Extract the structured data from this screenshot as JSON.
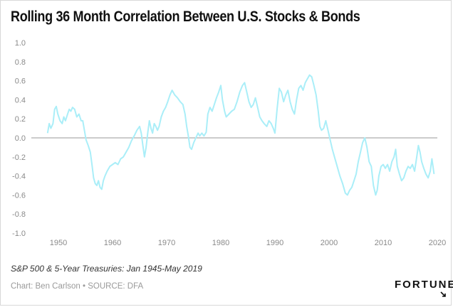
{
  "title": "Rolling 36 Month Correlation Between U.S. Stocks & Bonds",
  "subtitle": "S&P 500 & 5-Year Treasuries: Jan 1945-May 2019",
  "credit": "Chart: Ben Carlson • SOURCE: DFA",
  "logo": "FORTUNE",
  "colors": {
    "line": "#aaeef8",
    "zero_line": "#9a9a9a",
    "ticks": "#8a8a8a"
  },
  "chart_data": {
    "type": "line",
    "grid": false,
    "legend": "none",
    "xlim": [
      1945,
      2020
    ],
    "ylim": [
      -1.0,
      1.0
    ],
    "x_ticks": [
      "1950",
      "1960",
      "1970",
      "1980",
      "1990",
      "2000",
      "2010",
      "2020"
    ],
    "x_tick_values": [
      1950,
      1960,
      1970,
      1980,
      1990,
      2000,
      2010,
      2020
    ],
    "y_ticks": [
      "1.0",
      "0.8",
      "0.6",
      "0.4",
      "0.2",
      "0.0",
      "-0.2",
      "-0.4",
      "-0.6",
      "-0.8",
      "-1.0"
    ],
    "y_tick_values": [
      1.0,
      0.8,
      0.6,
      0.4,
      0.2,
      0.0,
      -0.2,
      -0.4,
      -0.6,
      -0.8,
      -1.0
    ],
    "series": [
      {
        "points": [
          [
            1948.0,
            0.05
          ],
          [
            1948.3,
            0.15
          ],
          [
            1948.6,
            0.1
          ],
          [
            1949.0,
            0.15
          ],
          [
            1949.3,
            0.3
          ],
          [
            1949.6,
            0.33
          ],
          [
            1949.9,
            0.25
          ],
          [
            1950.3,
            0.18
          ],
          [
            1950.7,
            0.15
          ],
          [
            1951.0,
            0.22
          ],
          [
            1951.3,
            0.18
          ],
          [
            1951.7,
            0.25
          ],
          [
            1952.0,
            0.3
          ],
          [
            1952.3,
            0.28
          ],
          [
            1952.6,
            0.32
          ],
          [
            1953.0,
            0.3
          ],
          [
            1953.4,
            0.22
          ],
          [
            1953.8,
            0.25
          ],
          [
            1954.2,
            0.18
          ],
          [
            1954.5,
            0.18
          ],
          [
            1954.8,
            0.08
          ],
          [
            1955.1,
            -0.02
          ],
          [
            1955.5,
            -0.08
          ],
          [
            1955.9,
            -0.15
          ],
          [
            1956.2,
            -0.28
          ],
          [
            1956.5,
            -0.42
          ],
          [
            1956.8,
            -0.48
          ],
          [
            1957.1,
            -0.5
          ],
          [
            1957.4,
            -0.45
          ],
          [
            1957.7,
            -0.52
          ],
          [
            1958.0,
            -0.54
          ],
          [
            1958.3,
            -0.45
          ],
          [
            1958.6,
            -0.4
          ],
          [
            1959.0,
            -0.35
          ],
          [
            1959.5,
            -0.3
          ],
          [
            1960.0,
            -0.28
          ],
          [
            1960.5,
            -0.26
          ],
          [
            1961.0,
            -0.28
          ],
          [
            1961.5,
            -0.22
          ],
          [
            1962.0,
            -0.2
          ],
          [
            1962.5,
            -0.15
          ],
          [
            1963.0,
            -0.1
          ],
          [
            1963.5,
            -0.03
          ],
          [
            1964.0,
            0.02
          ],
          [
            1964.5,
            0.08
          ],
          [
            1965.0,
            0.12
          ],
          [
            1965.3,
            0.05
          ],
          [
            1965.6,
            -0.08
          ],
          [
            1965.9,
            -0.2
          ],
          [
            1966.2,
            -0.1
          ],
          [
            1966.5,
            0.05
          ],
          [
            1966.8,
            0.18
          ],
          [
            1967.1,
            0.1
          ],
          [
            1967.4,
            0.05
          ],
          [
            1967.7,
            0.15
          ],
          [
            1968.0,
            0.12
          ],
          [
            1968.3,
            0.08
          ],
          [
            1968.6,
            0.12
          ],
          [
            1969.0,
            0.22
          ],
          [
            1969.4,
            0.28
          ],
          [
            1969.8,
            0.32
          ],
          [
            1970.2,
            0.38
          ],
          [
            1970.6,
            0.45
          ],
          [
            1971.0,
            0.5
          ],
          [
            1971.5,
            0.45
          ],
          [
            1972.0,
            0.42
          ],
          [
            1972.5,
            0.38
          ],
          [
            1973.0,
            0.35
          ],
          [
            1973.4,
            0.25
          ],
          [
            1973.7,
            0.12
          ],
          [
            1974.0,
            0.02
          ],
          [
            1974.3,
            -0.1
          ],
          [
            1974.6,
            -0.12
          ],
          [
            1975.0,
            -0.05
          ],
          [
            1975.4,
            0.0
          ],
          [
            1975.8,
            0.05
          ],
          [
            1976.1,
            0.02
          ],
          [
            1976.5,
            0.05
          ],
          [
            1976.9,
            0.02
          ],
          [
            1977.3,
            0.06
          ],
          [
            1977.6,
            0.25
          ],
          [
            1978.0,
            0.32
          ],
          [
            1978.4,
            0.28
          ],
          [
            1978.8,
            0.35
          ],
          [
            1979.2,
            0.42
          ],
          [
            1979.6,
            0.48
          ],
          [
            1980.0,
            0.55
          ],
          [
            1980.3,
            0.4
          ],
          [
            1980.7,
            0.28
          ],
          [
            1981.0,
            0.22
          ],
          [
            1981.5,
            0.25
          ],
          [
            1982.0,
            0.28
          ],
          [
            1982.5,
            0.3
          ],
          [
            1983.0,
            0.38
          ],
          [
            1983.5,
            0.48
          ],
          [
            1984.0,
            0.55
          ],
          [
            1984.4,
            0.58
          ],
          [
            1984.8,
            0.48
          ],
          [
            1985.2,
            0.38
          ],
          [
            1985.6,
            0.32
          ],
          [
            1986.0,
            0.35
          ],
          [
            1986.4,
            0.42
          ],
          [
            1986.8,
            0.32
          ],
          [
            1987.2,
            0.22
          ],
          [
            1987.6,
            0.18
          ],
          [
            1988.0,
            0.15
          ],
          [
            1988.5,
            0.12
          ],
          [
            1988.9,
            0.18
          ],
          [
            1989.3,
            0.15
          ],
          [
            1989.7,
            0.1
          ],
          [
            1990.0,
            0.05
          ],
          [
            1990.4,
            0.3
          ],
          [
            1990.8,
            0.52
          ],
          [
            1991.2,
            0.48
          ],
          [
            1991.6,
            0.38
          ],
          [
            1992.0,
            0.45
          ],
          [
            1992.4,
            0.5
          ],
          [
            1992.8,
            0.38
          ],
          [
            1993.2,
            0.3
          ],
          [
            1993.6,
            0.25
          ],
          [
            1994.0,
            0.4
          ],
          [
            1994.4,
            0.52
          ],
          [
            1994.8,
            0.55
          ],
          [
            1995.2,
            0.5
          ],
          [
            1995.6,
            0.58
          ],
          [
            1996.0,
            0.62
          ],
          [
            1996.4,
            0.66
          ],
          [
            1996.8,
            0.64
          ],
          [
            1997.2,
            0.55
          ],
          [
            1997.6,
            0.45
          ],
          [
            1998.0,
            0.28
          ],
          [
            1998.3,
            0.12
          ],
          [
            1998.6,
            0.08
          ],
          [
            1999.0,
            0.1
          ],
          [
            1999.4,
            0.18
          ],
          [
            1999.8,
            0.08
          ],
          [
            2000.2,
            -0.02
          ],
          [
            2000.6,
            -0.12
          ],
          [
            2001.0,
            -0.2
          ],
          [
            2001.5,
            -0.3
          ],
          [
            2002.0,
            -0.4
          ],
          [
            2002.5,
            -0.48
          ],
          [
            2003.0,
            -0.58
          ],
          [
            2003.4,
            -0.6
          ],
          [
            2003.8,
            -0.55
          ],
          [
            2004.2,
            -0.52
          ],
          [
            2004.6,
            -0.45
          ],
          [
            2005.0,
            -0.38
          ],
          [
            2005.4,
            -0.25
          ],
          [
            2005.8,
            -0.15
          ],
          [
            2006.2,
            -0.05
          ],
          [
            2006.6,
            0.0
          ],
          [
            2007.0,
            -0.1
          ],
          [
            2007.4,
            -0.25
          ],
          [
            2007.8,
            -0.3
          ],
          [
            2008.2,
            -0.5
          ],
          [
            2008.6,
            -0.6
          ],
          [
            2008.9,
            -0.55
          ],
          [
            2009.2,
            -0.4
          ],
          [
            2009.6,
            -0.3
          ],
          [
            2010.0,
            -0.28
          ],
          [
            2010.4,
            -0.32
          ],
          [
            2010.8,
            -0.28
          ],
          [
            2011.2,
            -0.35
          ],
          [
            2011.6,
            -0.25
          ],
          [
            2012.0,
            -0.2
          ],
          [
            2012.3,
            -0.12
          ],
          [
            2012.6,
            -0.3
          ],
          [
            2013.0,
            -0.38
          ],
          [
            2013.4,
            -0.45
          ],
          [
            2013.8,
            -0.42
          ],
          [
            2014.2,
            -0.35
          ],
          [
            2014.6,
            -0.3
          ],
          [
            2015.0,
            -0.32
          ],
          [
            2015.4,
            -0.28
          ],
          [
            2015.8,
            -0.35
          ],
          [
            2016.2,
            -0.2
          ],
          [
            2016.5,
            -0.08
          ],
          [
            2016.8,
            -0.15
          ],
          [
            2017.1,
            -0.25
          ],
          [
            2017.5,
            -0.32
          ],
          [
            2017.9,
            -0.38
          ],
          [
            2018.3,
            -0.42
          ],
          [
            2018.7,
            -0.35
          ],
          [
            2019.0,
            -0.22
          ],
          [
            2019.4,
            -0.38
          ]
        ]
      }
    ]
  }
}
